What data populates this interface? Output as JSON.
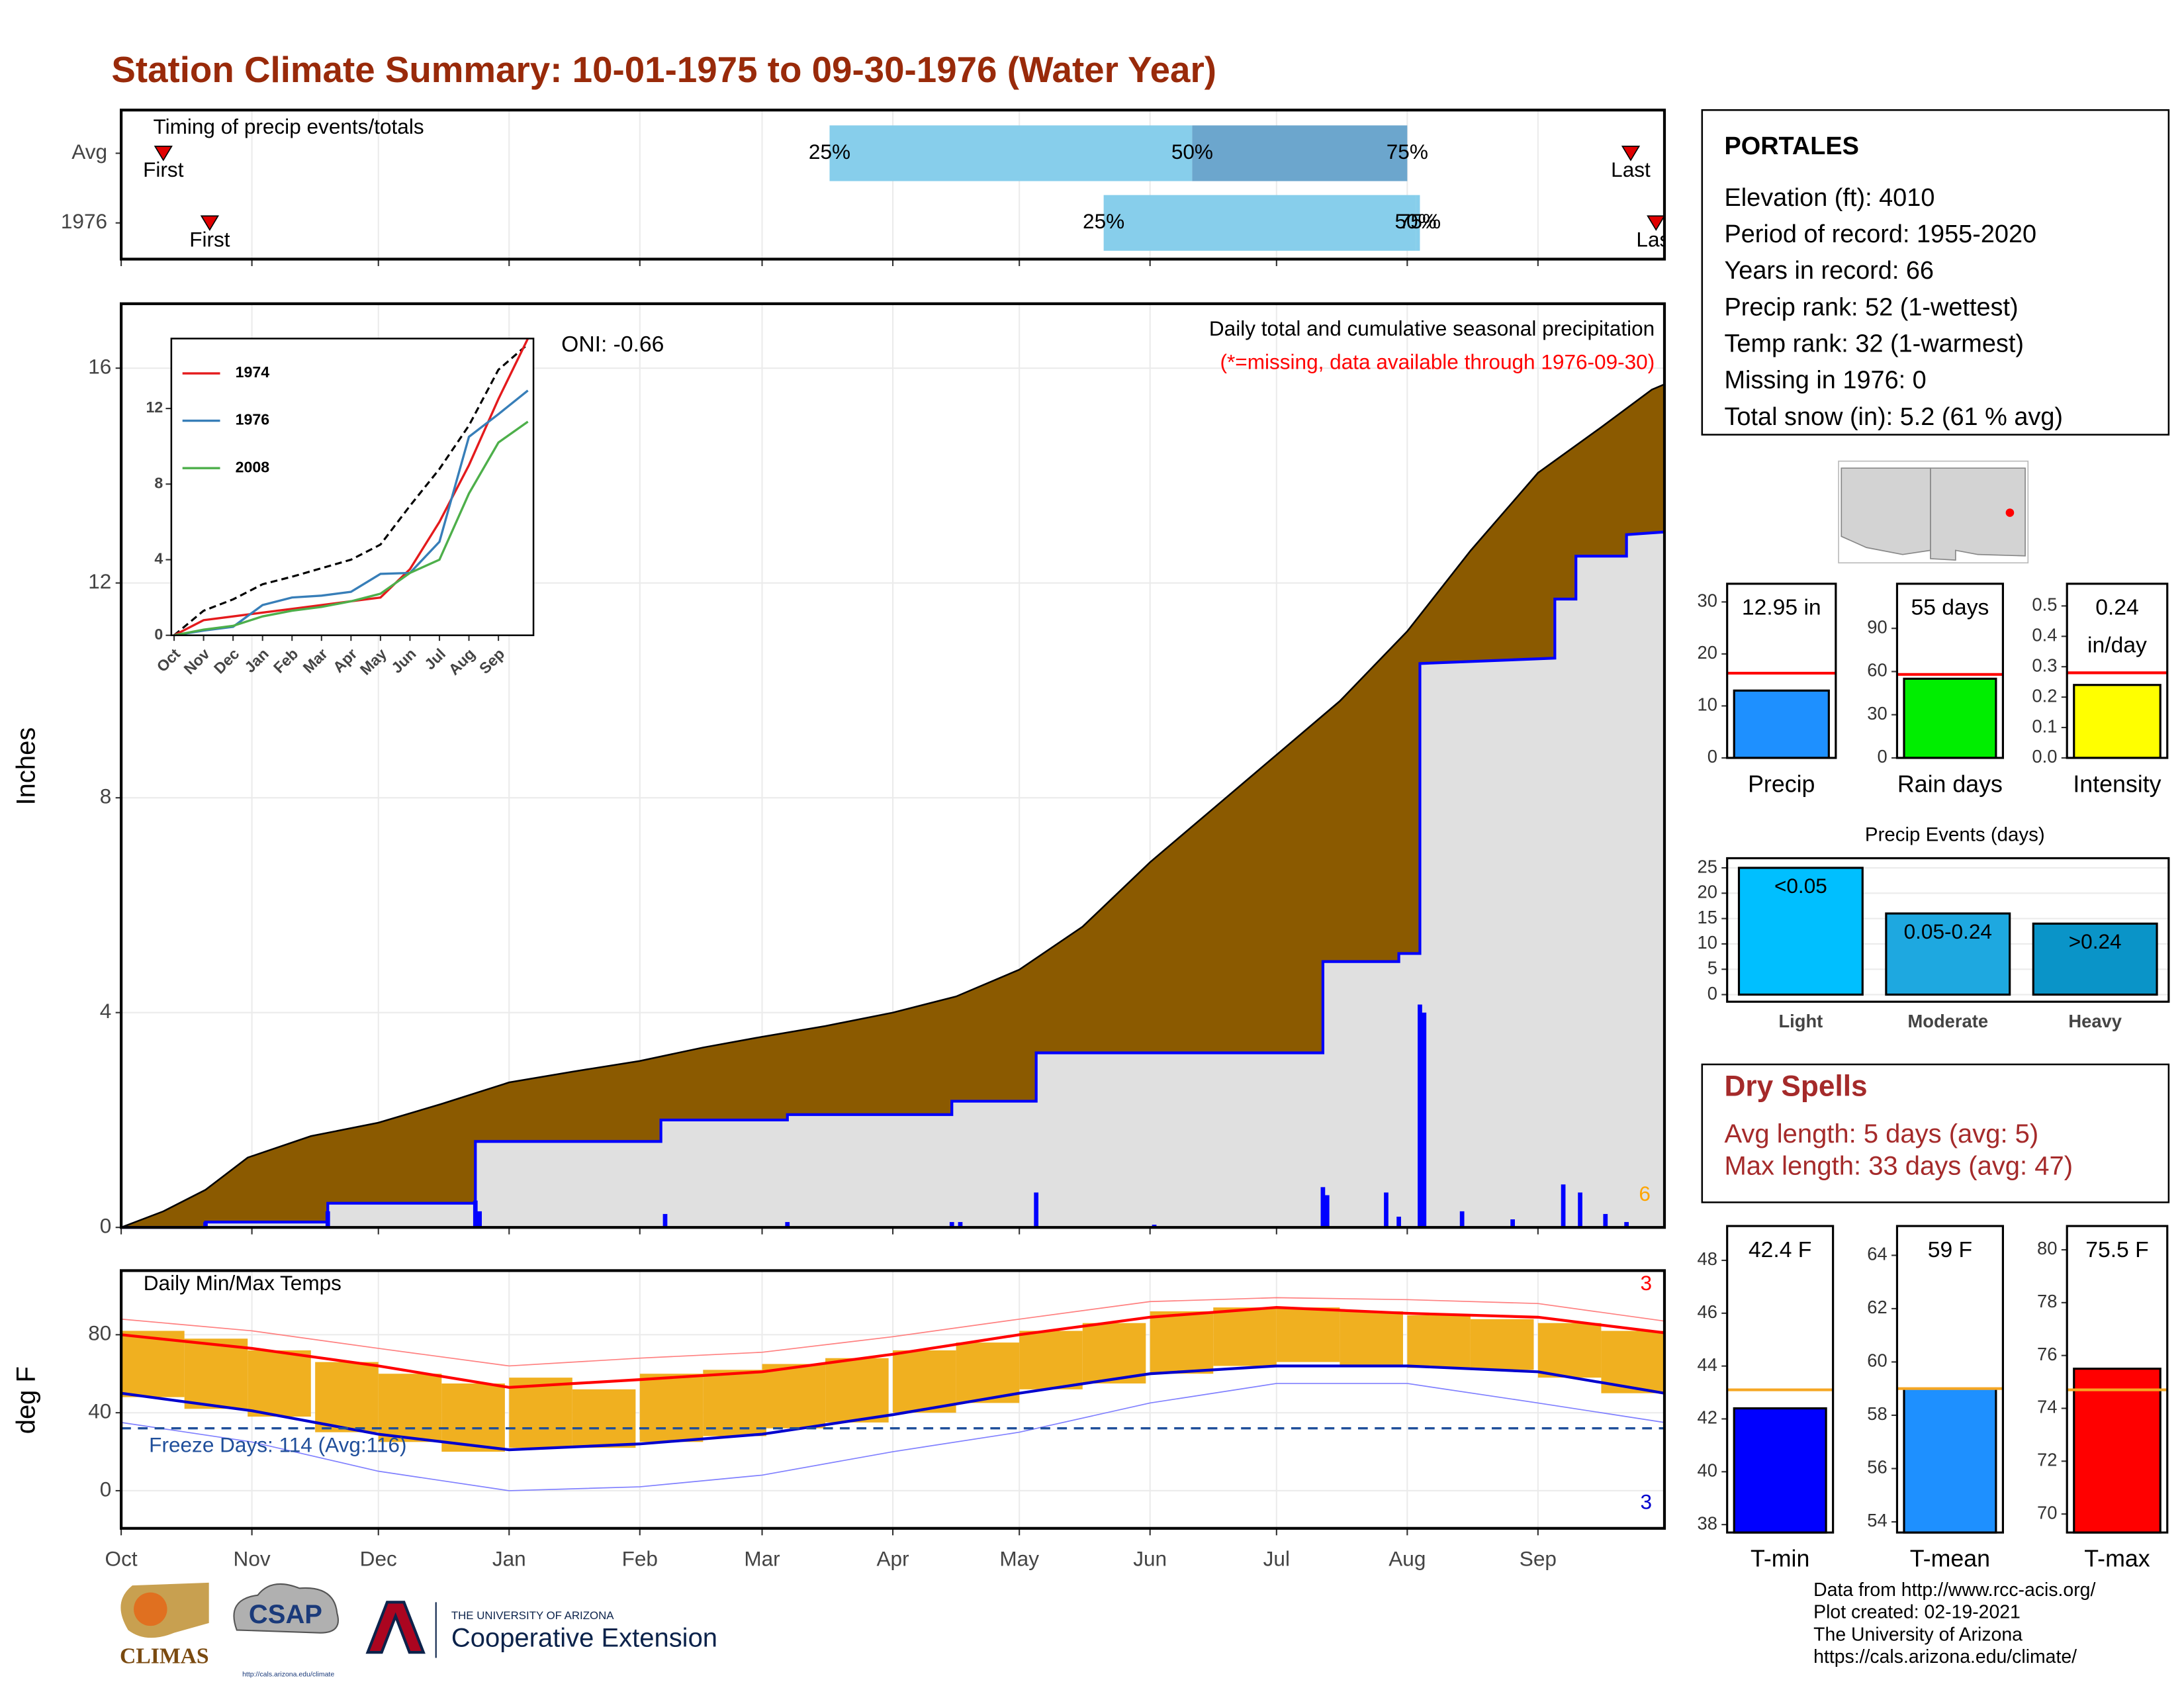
{
  "title": "Station Climate Summary: 10-01-1975 to 09-30-1976 (Water Year)",
  "station": {
    "name": "PORTALES",
    "lines": [
      "Elevation (ft): 4010",
      "Period of record: 1955-2020",
      "Years in record: 66",
      "Precip rank: 52 (1-wettest)",
      "Temp rank: 32 (1-warmest)",
      "Missing in 1976: 0",
      "Total snow (in): 5.2 (61 % avg)"
    ]
  },
  "dry_spells": {
    "title": "Dry Spells",
    "lines": [
      "Avg length: 5 days (avg: 5)",
      "Max length: 33 days (avg: 47)"
    ]
  },
  "footer": [
    "Data from http://www.rcc-acis.org/",
    "Plot created: 02-19-2021",
    "The University of Arizona",
    "https://cals.arizona.edu/climate/"
  ],
  "logos": {
    "climas": "CLIMAS",
    "csap": "CSAP",
    "csap_url": "http://cals.arizona.edu/climate",
    "ua": "THE UNIVERSITY OF ARIZONA",
    "coop": "Cooperative Extension"
  },
  "chart_data": [
    {
      "type": "timing",
      "title": "Timing of precip events/totals",
      "categories": [
        "Avg",
        "1976"
      ],
      "xlim": [
        0,
        366
      ],
      "xticks": [
        0,
        31,
        61,
        92,
        123,
        152,
        183,
        213,
        244,
        274,
        305,
        336
      ],
      "grid": true,
      "rows": [
        {
          "first": 10,
          "first_label": "First",
          "last": 358,
          "last_label": "Last",
          "q25": 168,
          "q50": 254,
          "q75": 305,
          "q_labels": [
            "25%",
            "50%",
            "75%"
          ],
          "colors": [
            "#87ceeb",
            "#6ca6cd"
          ]
        },
        {
          "first": 21,
          "first_label": "First",
          "last": 364,
          "last_label": "Last",
          "q25": 233,
          "q50": 307,
          "q75": 308,
          "q_labels": [
            "25%",
            "50%",
            "75%"
          ],
          "colors": [
            "#87ceeb",
            "#87ceeb"
          ]
        }
      ]
    },
    {
      "type": "precip",
      "y_label": "Inches",
      "xlim": [
        0,
        366
      ],
      "ylim": [
        0,
        17.2
      ],
      "yticks": [
        0,
        4,
        8,
        12,
        16
      ],
      "xticks": [
        0,
        31,
        61,
        92,
        123,
        152,
        183,
        213,
        244,
        274,
        305,
        336
      ],
      "grid": true,
      "oni": "ONI: -0.66",
      "subtitle": "Daily total and cumulative seasonal precipitation",
      "note": "(*=missing, data available through 1976-09-30)",
      "count": "6",
      "avg_cumulative": {
        "color": "#8b5a00",
        "x": [
          0,
          10,
          20,
          30,
          45,
          61,
          76,
          92,
          107,
          123,
          138,
          152,
          167,
          183,
          198,
          213,
          228,
          244,
          259,
          274,
          289,
          305,
          320,
          336,
          351,
          363,
          366
        ],
        "values": [
          0,
          0.3,
          0.7,
          1.3,
          1.7,
          1.95,
          2.3,
          2.7,
          2.9,
          3.1,
          3.35,
          3.55,
          3.75,
          4.0,
          4.3,
          4.8,
          5.6,
          6.8,
          7.8,
          8.8,
          9.8,
          11.1,
          12.6,
          14.05,
          14.9,
          15.6,
          15.7
        ]
      },
      "cumulative": {
        "color": "#0000ff",
        "fill": "#e0e0e0",
        "x": [
          0,
          20,
          20,
          49,
          49,
          84,
          84,
          128,
          128,
          158,
          158,
          197,
          197,
          217,
          217,
          285,
          285,
          303,
          303,
          308,
          308,
          340,
          340,
          345,
          345,
          357,
          357,
          366
        ],
        "values": [
          0,
          0,
          0.1,
          0.1,
          0.45,
          0.45,
          1.6,
          1.6,
          2.0,
          2.0,
          2.1,
          2.1,
          2.35,
          2.35,
          3.25,
          3.25,
          4.95,
          4.95,
          5.1,
          5.1,
          10.5,
          10.6,
          11.7,
          11.7,
          12.5,
          12.5,
          12.9,
          12.95
        ]
      },
      "daily": {
        "color": "#0000ff",
        "x": [
          20,
          49,
          84,
          85,
          129,
          158,
          197,
          199,
          217,
          245,
          285,
          286,
          300,
          303,
          308,
          309,
          318,
          330,
          342,
          346,
          352,
          357
        ],
        "values": [
          0.1,
          0.3,
          0.5,
          0.3,
          0.25,
          0.1,
          0.1,
          0.1,
          0.65,
          0.05,
          0.75,
          0.6,
          0.65,
          0.2,
          4.15,
          4.0,
          0.3,
          0.15,
          0.8,
          0.65,
          0.25,
          0.1
        ]
      }
    },
    {
      "type": "line",
      "categories": [
        "Oct",
        "Nov",
        "Dec",
        "Jan",
        "Feb",
        "Mar",
        "Apr",
        "May",
        "Jun",
        "Jul",
        "Aug",
        "Sep",
        null
      ],
      "ylim": [
        0,
        15.7
      ],
      "yticks": [
        0,
        4,
        8,
        12
      ],
      "series": [
        {
          "name": "1974",
          "color": "#e41a1c",
          "values": [
            0,
            0.8,
            1.0,
            1.2,
            1.4,
            1.6,
            1.8,
            2.0,
            3.5,
            6.0,
            9.0,
            12.5,
            15.7
          ]
        },
        {
          "name": "1976",
          "color": "#377eb8",
          "values": [
            0,
            0.25,
            0.45,
            1.6,
            2.0,
            2.1,
            2.3,
            3.25,
            3.3,
            4.95,
            10.5,
            11.7,
            12.95
          ]
        },
        {
          "name": "2008",
          "color": "#4daf4a",
          "values": [
            0,
            0.3,
            0.5,
            1.0,
            1.3,
            1.5,
            1.8,
            2.2,
            3.3,
            4.0,
            7.5,
            10.2,
            11.3
          ]
        }
      ],
      "average": {
        "color": "#000000",
        "values": [
          0,
          1.3,
          1.9,
          2.7,
          3.1,
          3.55,
          4.0,
          4.8,
          6.85,
          8.8,
          11.1,
          14.05,
          15.4
        ]
      }
    },
    {
      "type": "temps",
      "title": "Daily Min/Max Temps",
      "y_label": "deg F",
      "xlim": [
        0,
        366
      ],
      "ylim": [
        -19.3,
        112.9
      ],
      "yticks": [
        0,
        40,
        80
      ],
      "grid": true,
      "xticks": [
        {
          "value": 0,
          "label": "Oct"
        },
        {
          "value": 31,
          "label": "Nov"
        },
        {
          "value": 61,
          "label": "Dec"
        },
        {
          "value": 92,
          "label": "Jan"
        },
        {
          "value": 123,
          "label": "Feb"
        },
        {
          "value": 152,
          "label": "Mar"
        },
        {
          "value": 183,
          "label": "Apr"
        },
        {
          "value": 213,
          "label": "May"
        },
        {
          "value": 244,
          "label": "Jun"
        },
        {
          "value": 274,
          "label": "Jul"
        },
        {
          "value": 305,
          "label": "Aug"
        },
        {
          "value": 336,
          "label": "Sep"
        }
      ],
      "freeze_line": 32,
      "freeze_label": "Freeze Days: 114 (Avg:116)",
      "high_count": "3",
      "low_count": "3",
      "daily": {
        "color": "#f0b020",
        "x": [
          0,
          15,
          30,
          46,
          61,
          76,
          92,
          107,
          123,
          138,
          152,
          167,
          183,
          198,
          213,
          228,
          244,
          259,
          274,
          289,
          305,
          320,
          336,
          351
        ],
        "max": [
          82,
          78,
          72,
          66,
          60,
          55,
          58,
          52,
          60,
          62,
          65,
          68,
          72,
          76,
          82,
          86,
          92,
          94,
          94,
          92,
          90,
          88,
          86,
          82
        ],
        "min": [
          48,
          42,
          38,
          30,
          25,
          20,
          22,
          22,
          25,
          28,
          32,
          35,
          40,
          45,
          52,
          55,
          60,
          64,
          66,
          64,
          63,
          62,
          58,
          50
        ]
      },
      "record_high": {
        "color": "#ff8080",
        "x": [
          0,
          31,
          61,
          92,
          123,
          152,
          183,
          213,
          244,
          274,
          305,
          336,
          366
        ],
        "values": [
          88,
          82,
          73,
          64,
          68,
          71,
          79,
          88,
          97,
          99,
          98,
          96,
          87
        ]
      },
      "avg_max": {
        "color": "#ff0000",
        "x": [
          0,
          31,
          61,
          92,
          123,
          152,
          183,
          213,
          244,
          274,
          305,
          336,
          366
        ],
        "values": [
          80,
          73,
          64,
          53,
          57,
          61,
          70,
          80,
          89,
          94,
          91,
          89,
          81
        ]
      },
      "avg_min": {
        "color": "#0000cd",
        "x": [
          0,
          31,
          61,
          92,
          123,
          152,
          183,
          213,
          244,
          274,
          305,
          336,
          366
        ],
        "values": [
          50,
          41,
          29,
          21,
          24,
          29,
          39,
          50,
          60,
          64,
          64,
          61,
          50
        ]
      },
      "record_low": {
        "color": "#8080ff",
        "x": [
          0,
          31,
          61,
          92,
          123,
          152,
          183,
          213,
          244,
          274,
          305,
          336,
          366
        ],
        "values": [
          35,
          25,
          10,
          0,
          2,
          8,
          20,
          30,
          45,
          55,
          55,
          45,
          35
        ]
      }
    },
    {
      "type": "summary_bar",
      "categories": [
        "Precip"
      ],
      "values": [
        12.95
      ],
      "value_labels": [
        "12.95 in"
      ],
      "average": 16.3,
      "color": "#1e90ff",
      "avg_color": "#ff0000",
      "ylim": [
        0,
        33.5
      ],
      "yticks": [
        0,
        10,
        20,
        30
      ]
    },
    {
      "type": "summary_bar",
      "categories": [
        "Rain days"
      ],
      "values": [
        55
      ],
      "value_labels": [
        "55 days"
      ],
      "average": 58,
      "color": "#00ee00",
      "avg_color": "#ff0000",
      "ylim": [
        0,
        121
      ],
      "yticks": [
        0,
        30,
        60,
        90
      ]
    },
    {
      "type": "summary_bar",
      "categories": [
        "Intensity"
      ],
      "values": [
        0.24
      ],
      "value_labels": [
        "0.24"
      ],
      "unit": "in/day",
      "average": 0.28,
      "color": "#ffff00",
      "avg_color": "#ff0000",
      "ylim": [
        0,
        0.573
      ],
      "yticks": [
        {
          "value": 0,
          "label": "0.0"
        },
        0.1,
        0.2,
        0.3,
        0.4,
        0.5
      ]
    },
    {
      "type": "events_bar",
      "title": "Precip Events (days)",
      "categories": [
        "Light",
        "Moderate",
        "Heavy"
      ],
      "values": [
        25,
        16,
        14
      ],
      "ranges": [
        "<0.05",
        "0.05-0.24",
        ">0.24"
      ],
      "colors": [
        "#00bfff",
        "#1ea8e0",
        "#0a94c8"
      ],
      "ylim": [
        -1.4,
        26.9
      ],
      "yticks": [
        0,
        5,
        10,
        15,
        20,
        25
      ],
      "grid": true
    },
    {
      "type": "summary_bar",
      "categories": [
        "T-min"
      ],
      "values": [
        42.4
      ],
      "value_labels": [
        "42.4 F"
      ],
      "average": 43.1,
      "color": "#0000ff",
      "avg_color": "#f5a623",
      "ylim": [
        37.7,
        49.3
      ],
      "yticks": [
        38,
        40,
        42,
        44,
        46,
        48
      ]
    },
    {
      "type": "summary_bar",
      "categories": [
        "T-mean"
      ],
      "values": [
        59
      ],
      "value_labels": [
        "59 F"
      ],
      "average": 59.0,
      "color": "#1e90ff",
      "avg_color": "#f5a623",
      "ylim": [
        53.6,
        65.1
      ],
      "yticks": [
        54,
        56,
        58,
        60,
        62,
        64
      ]
    },
    {
      "type": "summary_bar",
      "categories": [
        "T-max"
      ],
      "values": [
        75.5
      ],
      "value_labels": [
        "75.5 F"
      ],
      "average": 74.7,
      "color": "#ff0000",
      "avg_color": "#f5a623",
      "ylim": [
        69.3,
        80.9
      ],
      "yticks": [
        70,
        72,
        74,
        76,
        78,
        80
      ]
    }
  ]
}
